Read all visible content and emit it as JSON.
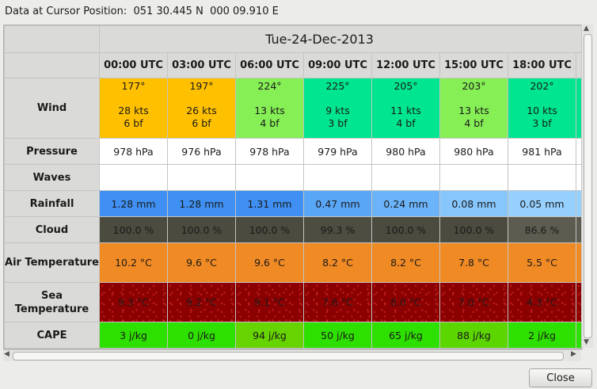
{
  "cursor": {
    "label": "Data at Cursor Position:",
    "lat": "051 30.445 N",
    "lon": "000 09.910 E"
  },
  "date": "Tue-24-Dec-2013",
  "hours": [
    "00:00  UTC",
    "03:00  UTC",
    "06:00  UTC",
    "09:00  UTC",
    "12:00  UTC",
    "15:00  UTC",
    "18:00  UTC",
    ""
  ],
  "row_labels": {
    "wind": "Wind",
    "pressure": "Pressure",
    "waves": "Waves",
    "rainfall": "Rainfall",
    "cloud": "Cloud",
    "air_temp": "Air\nTemperature",
    "sea_temp": "Sea\nTemperature",
    "cape": "CAPE"
  },
  "rows": {
    "wind": [
      {
        "dir": "177°",
        "kts": "28 kts",
        "bf": "6 bf",
        "color": "#ffc000"
      },
      {
        "dir": "197°",
        "kts": "26 kts",
        "bf": "6 bf",
        "color": "#ffc000"
      },
      {
        "dir": "224°",
        "kts": "13 kts",
        "bf": "4 bf",
        "color": "#86ef56"
      },
      {
        "dir": "225°",
        "kts": "9 kts",
        "bf": "3 bf",
        "color": "#00e690"
      },
      {
        "dir": "205°",
        "kts": "11 kts",
        "bf": "4 bf",
        "color": "#00e690"
      },
      {
        "dir": "203°",
        "kts": "13 kts",
        "bf": "4 bf",
        "color": "#86ef56"
      },
      {
        "dir": "202°",
        "kts": "10 kts",
        "bf": "3 bf",
        "color": "#00e690"
      },
      {
        "dir": "",
        "kts": "",
        "bf": "",
        "color": "#00e690"
      }
    ],
    "pressure": [
      {
        "v": "978 hPa",
        "color": "#ffffff"
      },
      {
        "v": "976 hPa",
        "color": "#ffffff"
      },
      {
        "v": "978 hPa",
        "color": "#ffffff"
      },
      {
        "v": "979 hPa",
        "color": "#ffffff"
      },
      {
        "v": "980 hPa",
        "color": "#ffffff"
      },
      {
        "v": "980 hPa",
        "color": "#ffffff"
      },
      {
        "v": "981 hPa",
        "color": "#ffffff"
      },
      {
        "v": "",
        "color": "#ffffff"
      }
    ],
    "waves": [
      {
        "v": "",
        "color": "#ffffff"
      },
      {
        "v": "",
        "color": "#ffffff"
      },
      {
        "v": "",
        "color": "#ffffff"
      },
      {
        "v": "",
        "color": "#ffffff"
      },
      {
        "v": "",
        "color": "#ffffff"
      },
      {
        "v": "",
        "color": "#ffffff"
      },
      {
        "v": "",
        "color": "#ffffff"
      },
      {
        "v": "",
        "color": "#ffffff"
      }
    ],
    "rainfall": [
      {
        "v": "1.28 mm",
        "color": "#3f90f2"
      },
      {
        "v": "1.28 mm",
        "color": "#3f90f2"
      },
      {
        "v": "1.31 mm",
        "color": "#3f90f2"
      },
      {
        "v": "0.47 mm",
        "color": "#5aa6f6"
      },
      {
        "v": "0.24 mm",
        "color": "#6cb4fa"
      },
      {
        "v": "0.08 mm",
        "color": "#86c6fc"
      },
      {
        "v": "0.05 mm",
        "color": "#96d0fe"
      },
      {
        "v": "",
        "color": "#96d0fe"
      }
    ],
    "cloud": [
      {
        "v": "100.0 %",
        "color": "#4b4b3f"
      },
      {
        "v": "100.0 %",
        "color": "#4b4b3f"
      },
      {
        "v": "100.0 %",
        "color": "#4b4b3f"
      },
      {
        "v": "99.3 %",
        "color": "#4d4d41"
      },
      {
        "v": "100.0 %",
        "color": "#4b4b3f"
      },
      {
        "v": "100.0 %",
        "color": "#4b4b3f"
      },
      {
        "v": "86.6 %",
        "color": "#5c5c50"
      },
      {
        "v": "",
        "color": "#5c5c50"
      }
    ],
    "air_temp": [
      {
        "v": "10.2 °C",
        "color": "#f08a24"
      },
      {
        "v": "9.6 °C",
        "color": "#f08a24"
      },
      {
        "v": "9.6 °C",
        "color": "#f08a24"
      },
      {
        "v": "8.2 °C",
        "color": "#f08a24"
      },
      {
        "v": "8.2 °C",
        "color": "#f08a24"
      },
      {
        "v": "7.8 °C",
        "color": "#f08a24"
      },
      {
        "v": "5.5 °C",
        "color": "#f08a24"
      },
      {
        "v": "",
        "color": "#f08a24"
      }
    ],
    "sea_temp": [
      {
        "v": "9.3 °C",
        "color": "#8b0000"
      },
      {
        "v": "9.2 °C",
        "color": "#8b0000"
      },
      {
        "v": "9.1 °C",
        "color": "#8b0000"
      },
      {
        "v": "7.6 °C",
        "color": "#8b0000"
      },
      {
        "v": "8.0 °C",
        "color": "#8b0000"
      },
      {
        "v": "7.0 °C",
        "color": "#8b0000"
      },
      {
        "v": "4.3 °C",
        "color": "#8b0000"
      },
      {
        "v": "",
        "color": "#8b0000"
      }
    ],
    "cape": [
      {
        "v": "3 j/kg",
        "color": "#2ee000"
      },
      {
        "v": "0 j/kg",
        "color": "#2ee000"
      },
      {
        "v": "94 j/kg",
        "color": "#66d400"
      },
      {
        "v": "50 j/kg",
        "color": "#2ee000"
      },
      {
        "v": "65 j/kg",
        "color": "#2ee000"
      },
      {
        "v": "88 j/kg",
        "color": "#5cd600"
      },
      {
        "v": "2 j/kg",
        "color": "#2ee000"
      },
      {
        "v": "",
        "color": "#2ee000"
      }
    ]
  },
  "buttons": {
    "close": "Close"
  }
}
